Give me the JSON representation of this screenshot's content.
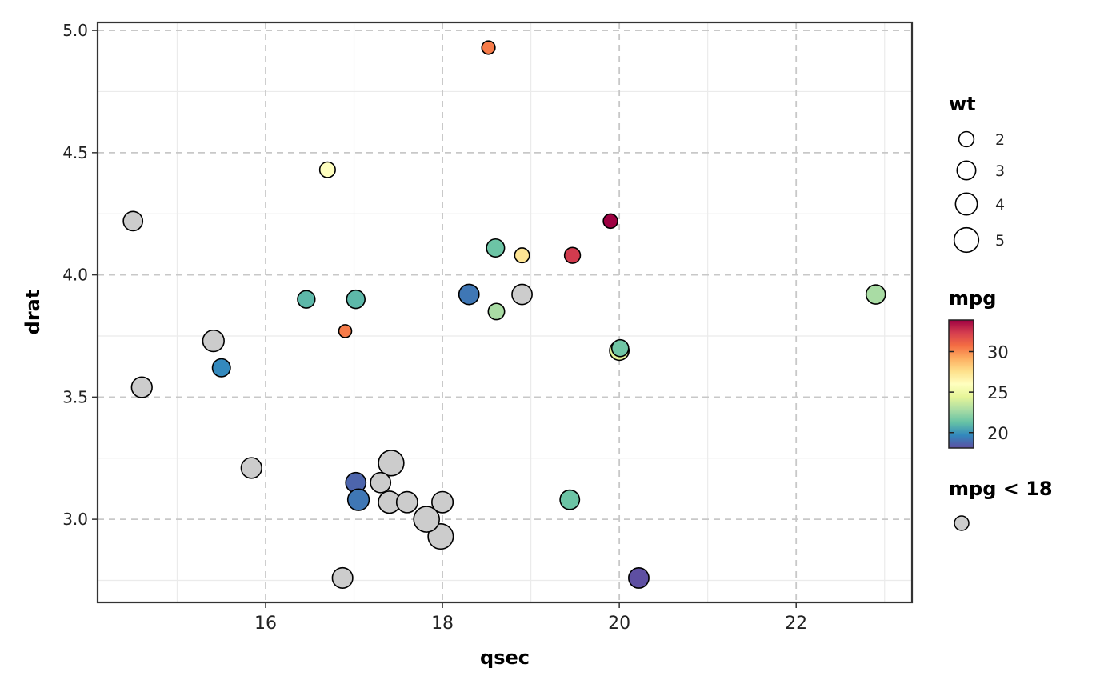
{
  "chart_data": {
    "type": "scatter",
    "xlabel": "qsec",
    "ylabel": "drat",
    "xlim": [
      14.1,
      23.31
    ],
    "ylim": [
      2.66,
      5.033
    ],
    "xticks": [
      16,
      18,
      20,
      22
    ],
    "xtick_labels": [
      "16",
      "18",
      "20",
      "22"
    ],
    "yticks": [
      3.0,
      3.5,
      4.0,
      4.5,
      5.0
    ],
    "ytick_labels": [
      "3.0",
      "3.5",
      "4.0",
      "4.5",
      "5.0"
    ],
    "grid": true,
    "legend_placement": "right",
    "size_legend": {
      "title": "wt",
      "values": [
        2,
        3,
        4,
        5
      ],
      "labels": [
        "2",
        "3",
        "4",
        "5"
      ]
    },
    "color_legend": {
      "title": "mpg",
      "range": [
        18.1,
        33.9
      ],
      "ticks": [
        20,
        25,
        30
      ],
      "labels": [
        "20",
        "25",
        "30"
      ],
      "palette": [
        "#5E4FA2",
        "#3288BD",
        "#66C2A5",
        "#ABDDA4",
        "#E6F598",
        "#FFFFBF",
        "#FEE08B",
        "#FDAE61",
        "#F46D43",
        "#D53E4F",
        "#9E0142"
      ]
    },
    "na_legend": {
      "title": "mpg < 18",
      "color": "#CCCCCC"
    },
    "wt_range": [
      1.513,
      5.424
    ],
    "points": [
      {
        "qsec": 16.46,
        "drat": 3.9,
        "wt": 2.62,
        "mpg": 21.0
      },
      {
        "qsec": 17.02,
        "drat": 3.9,
        "wt": 2.875,
        "mpg": 21.0
      },
      {
        "qsec": 18.61,
        "drat": 3.85,
        "wt": 2.32,
        "mpg": 22.8
      },
      {
        "qsec": 19.44,
        "drat": 3.08,
        "wt": 3.215,
        "mpg": 21.4
      },
      {
        "qsec": 17.02,
        "drat": 3.15,
        "wt": 3.44,
        "mpg": 18.7
      },
      {
        "qsec": 20.22,
        "drat": 2.76,
        "wt": 3.46,
        "mpg": 18.1
      },
      {
        "qsec": 15.84,
        "drat": 3.21,
        "wt": 3.57,
        "mpg": 14.3
      },
      {
        "qsec": 20.0,
        "drat": 3.69,
        "wt": 3.19,
        "mpg": 24.4
      },
      {
        "qsec": 22.9,
        "drat": 3.92,
        "wt": 3.15,
        "mpg": 22.8
      },
      {
        "qsec": 18.3,
        "drat": 3.92,
        "wt": 3.44,
        "mpg": 19.2
      },
      {
        "qsec": 18.9,
        "drat": 3.92,
        "wt": 3.44,
        "mpg": 17.8
      },
      {
        "qsec": 17.4,
        "drat": 3.07,
        "wt": 4.07,
        "mpg": 16.4
      },
      {
        "qsec": 17.6,
        "drat": 3.07,
        "wt": 3.73,
        "mpg": 17.3
      },
      {
        "qsec": 18.0,
        "drat": 3.07,
        "wt": 3.78,
        "mpg": 15.2
      },
      {
        "qsec": 17.98,
        "drat": 2.93,
        "wt": 5.25,
        "mpg": 10.4
      },
      {
        "qsec": 17.82,
        "drat": 3.0,
        "wt": 5.424,
        "mpg": 10.4
      },
      {
        "qsec": 17.42,
        "drat": 3.23,
        "wt": 5.345,
        "mpg": 14.7
      },
      {
        "qsec": 19.47,
        "drat": 4.08,
        "wt": 2.2,
        "mpg": 32.4
      },
      {
        "qsec": 18.52,
        "drat": 4.93,
        "wt": 1.615,
        "mpg": 30.4
      },
      {
        "qsec": 19.9,
        "drat": 4.22,
        "wt": 1.835,
        "mpg": 33.9
      },
      {
        "qsec": 20.01,
        "drat": 3.7,
        "wt": 2.465,
        "mpg": 21.5
      },
      {
        "qsec": 16.87,
        "drat": 2.76,
        "wt": 3.52,
        "mpg": 15.5
      },
      {
        "qsec": 17.3,
        "drat": 3.15,
        "wt": 3.435,
        "mpg": 15.2
      },
      {
        "qsec": 15.41,
        "drat": 3.73,
        "wt": 3.84,
        "mpg": 13.3
      },
      {
        "qsec": 17.05,
        "drat": 3.08,
        "wt": 3.845,
        "mpg": 19.2
      },
      {
        "qsec": 18.9,
        "drat": 4.08,
        "wt": 1.935,
        "mpg": 27.3
      },
      {
        "qsec": 16.7,
        "drat": 4.43,
        "wt": 2.14,
        "mpg": 26.0
      },
      {
        "qsec": 16.9,
        "drat": 3.77,
        "wt": 1.513,
        "mpg": 30.4
      },
      {
        "qsec": 14.5,
        "drat": 4.22,
        "wt": 3.17,
        "mpg": 15.8
      },
      {
        "qsec": 15.5,
        "drat": 3.62,
        "wt": 2.77,
        "mpg": 19.7
      },
      {
        "qsec": 14.6,
        "drat": 3.54,
        "wt": 3.57,
        "mpg": 15.0
      },
      {
        "qsec": 18.6,
        "drat": 4.11,
        "wt": 2.78,
        "mpg": 21.4
      }
    ]
  }
}
